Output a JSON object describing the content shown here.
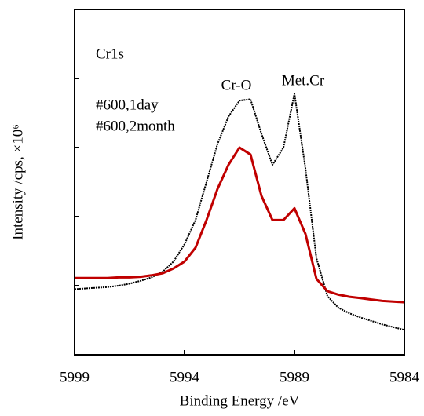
{
  "chart_data": {
    "type": "line",
    "xlabel": "Binding  Energy /eV",
    "ylabel": "Intensity /cps, ×10⁶",
    "annotations": [
      "Cr1s",
      "Cr-O",
      "Met.Cr"
    ],
    "x": [
      5999,
      5998.5,
      5998,
      5997.5,
      5997,
      5996.5,
      5996,
      5995.5,
      5995,
      5994.5,
      5994,
      5993.5,
      5993,
      5992.5,
      5992,
      5991.5,
      5991,
      5990.5,
      5990,
      5989.5,
      5989,
      5988.5,
      5988,
      5987.5,
      5987,
      5986.5,
      5986,
      5985.5,
      5985,
      5984.5,
      5984
    ],
    "series": [
      {
        "name": "#600,1day",
        "color": "#000000",
        "values": [
          0.95,
          0.96,
          0.97,
          0.98,
          1.0,
          1.03,
          1.07,
          1.12,
          1.2,
          1.35,
          1.6,
          1.95,
          2.5,
          3.05,
          3.45,
          3.68,
          3.7,
          3.2,
          2.75,
          3.0,
          3.78,
          2.7,
          1.4,
          0.85,
          0.68,
          0.6,
          0.54,
          0.49,
          0.44,
          0.4,
          0.36
        ]
      },
      {
        "name": "#600,2month",
        "color": "#c00000",
        "values": [
          1.11,
          1.11,
          1.11,
          1.11,
          1.12,
          1.12,
          1.13,
          1.15,
          1.18,
          1.25,
          1.35,
          1.55,
          1.95,
          2.4,
          2.75,
          3.0,
          2.9,
          2.3,
          1.95,
          1.95,
          2.12,
          1.75,
          1.1,
          0.92,
          0.87,
          0.84,
          0.82,
          0.8,
          0.78,
          0.77,
          0.76
        ]
      }
    ],
    "xlim": [
      5999,
      5984
    ],
    "xticks": [
      5999,
      5994,
      5989,
      5984
    ],
    "ylim": [
      0,
      5
    ],
    "yticks": [
      1,
      2,
      3,
      4
    ]
  }
}
